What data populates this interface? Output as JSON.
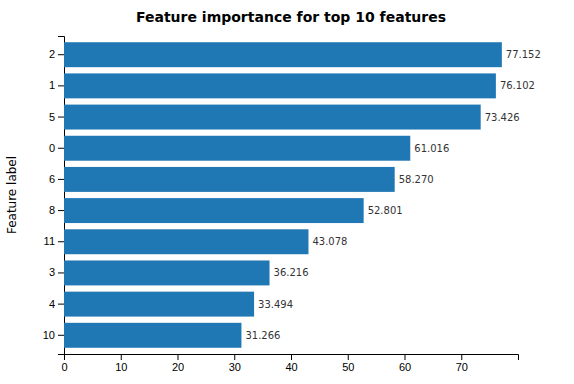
{
  "chart_data": {
    "type": "bar",
    "orientation": "horizontal",
    "title": "Feature importance for top 10 features",
    "ylabel": "Feature label",
    "categories": [
      "2",
      "1",
      "5",
      "0",
      "6",
      "8",
      "11",
      "3",
      "4",
      "10"
    ],
    "values": [
      77.152,
      76.102,
      73.426,
      61.016,
      58.27,
      52.801,
      43.078,
      36.216,
      33.494,
      31.266
    ],
    "value_labels": [
      "77.152",
      "76.102",
      "73.426",
      "61.016",
      "58.270",
      "52.801",
      "43.078",
      "36.216",
      "33.494",
      "31.266"
    ],
    "data_labels": true,
    "color": "#1f77b4",
    "xlim": [
      0,
      80
    ],
    "xticks": [
      0,
      10,
      20,
      30,
      40,
      50,
      60,
      70
    ]
  }
}
